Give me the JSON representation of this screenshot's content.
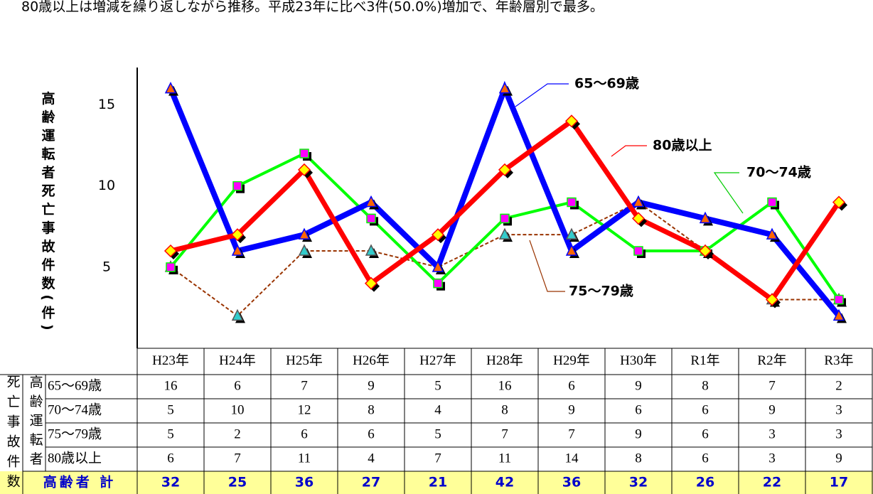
{
  "chart_data": {
    "type": "line",
    "caption": "80歳以上は増減を繰り返しながら推移。平成23年に比べ3件(50.0%)増加で、年齢層別で最多。",
    "y_label": "高齢運転者死亡事故件数(件)",
    "categories": [
      "H23年",
      "H24年",
      "H25年",
      "H26年",
      "H27年",
      "H28年",
      "H29年",
      "H30年",
      "R1年",
      "R2年",
      "R3年"
    ],
    "ylim": [
      0,
      17.3
    ],
    "yticks": [
      5,
      10,
      15
    ],
    "series": [
      {
        "name": "75～79歳",
        "color": "#993300",
        "dashed": true,
        "width": 2,
        "marker": "triangle",
        "marker_color": "#33cccc",
        "values": [
          5,
          2,
          6,
          6,
          5,
          7,
          7,
          9,
          6,
          3,
          3
        ]
      },
      {
        "name": "70～74歳",
        "color": "#00ff00",
        "dashed": false,
        "width": 4,
        "marker": "square",
        "marker_color": "#ff00ff",
        "values": [
          5,
          10,
          12,
          8,
          4,
          8,
          9,
          6,
          6,
          9,
          3
        ]
      },
      {
        "name": "65～69歳",
        "color": "#0000ff",
        "dashed": false,
        "width": 8,
        "marker": "triangle",
        "marker_color": "#ff6600",
        "values": [
          16,
          6,
          7,
          9,
          5,
          16,
          6,
          9,
          8,
          7,
          2
        ]
      },
      {
        "name": "80歳以上",
        "color": "#ff0000",
        "dashed": false,
        "width": 7,
        "marker": "diamond",
        "marker_color": "#ffff00",
        "values": [
          6,
          7,
          11,
          4,
          7,
          11,
          14,
          8,
          6,
          3,
          9
        ]
      }
    ],
    "table_outer_label": "死亡事故件数",
    "table_inner_label": "高齢運転者",
    "table_order": [
      2,
      1,
      0,
      3
    ],
    "total_label": "高齢者 計",
    "totals": [
      32,
      25,
      36,
      27,
      21,
      42,
      36,
      32,
      26,
      22,
      17
    ]
  }
}
